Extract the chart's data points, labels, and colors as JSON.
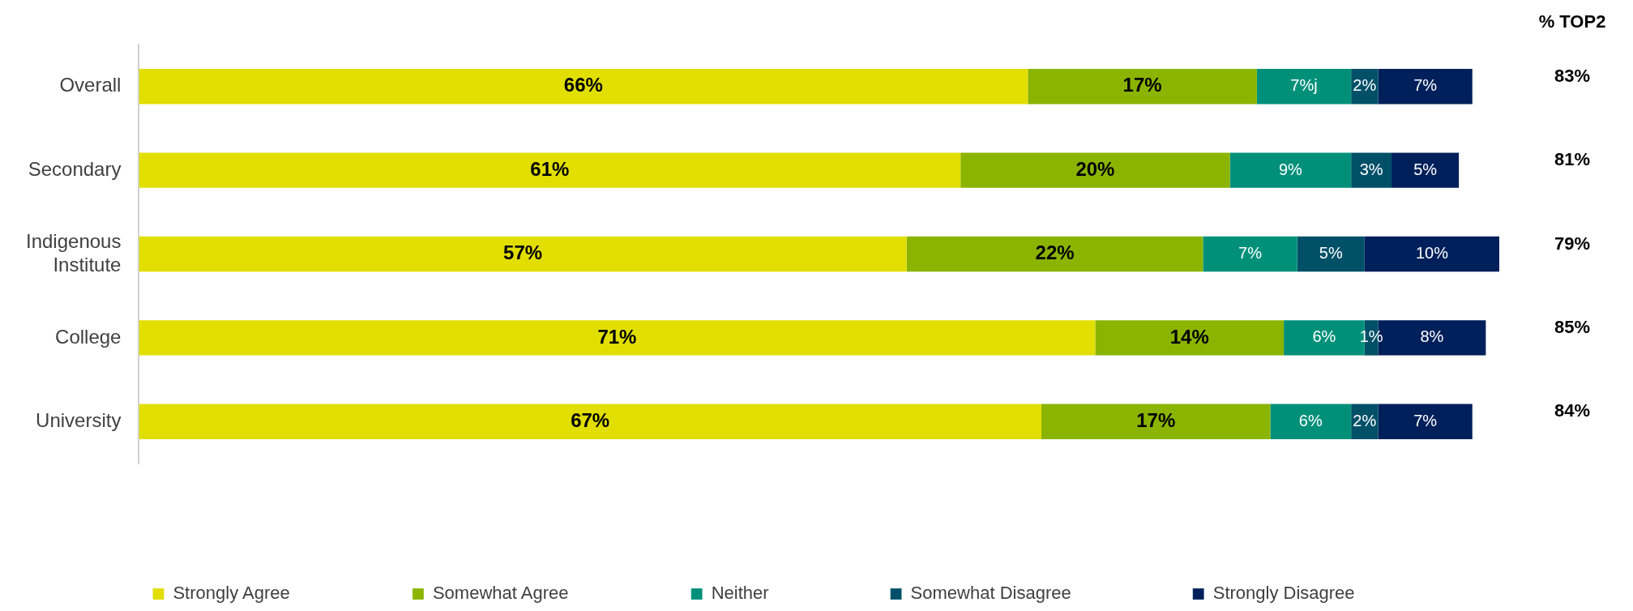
{
  "chart_data": {
    "type": "bar",
    "orientation": "horizontal",
    "stacked": true,
    "categories": [
      "Overall",
      "Secondary",
      "Indigenous Institute",
      "College",
      "University"
    ],
    "series": [
      {
        "name": "Strongly Agree",
        "color": "#e1de00",
        "values": [
          66,
          61,
          57,
          71,
          67
        ],
        "value_labels": [
          "66%",
          "61%",
          "57%",
          "71%",
          "67%"
        ]
      },
      {
        "name": "Somewhat Agree",
        "color": "#8bb400",
        "values": [
          17,
          20,
          22,
          14,
          17
        ],
        "value_labels": [
          "17%",
          "20%",
          "22%",
          "14%",
          "17%"
        ]
      },
      {
        "name": "Neither",
        "color": "#00907a",
        "values": [
          7,
          9,
          7,
          6,
          6
        ],
        "value_labels": [
          "7%j",
          "9%",
          "7%",
          "6%",
          "6%"
        ]
      },
      {
        "name": "Somewhat Disagree",
        "color": "#005068",
        "values": [
          2,
          3,
          5,
          1,
          2
        ],
        "value_labels": [
          "2%",
          "3%",
          "5%",
          "1%",
          "2%"
        ]
      },
      {
        "name": "Strongly Disagree",
        "color": "#00205b",
        "values": [
          7,
          5,
          10,
          8,
          7
        ],
        "value_labels": [
          "7%",
          "5%",
          "10%",
          "8%",
          "7%"
        ]
      }
    ],
    "annotations": [
      "% TOP2",
      "83%",
      "81%",
      "79%",
      "85%",
      "84%"
    ],
    "legend": "bottom",
    "grid": false
  }
}
